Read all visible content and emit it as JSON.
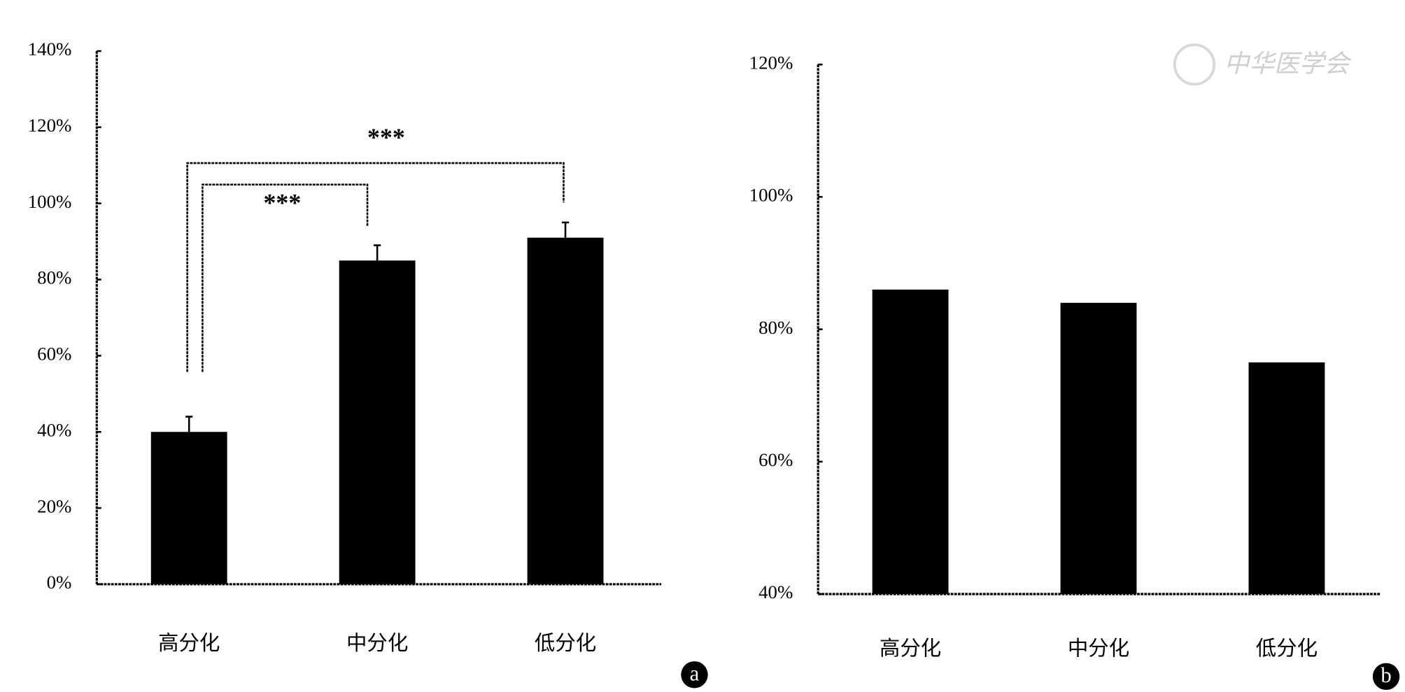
{
  "watermark": "中华医学会",
  "chart_data": [
    {
      "type": "bar",
      "panel": "a",
      "categories": [
        "高分化",
        "中分化",
        "低分化"
      ],
      "values": [
        40,
        85,
        91
      ],
      "errors": [
        4,
        4,
        4
      ],
      "color": "#000000",
      "ylim": [
        0,
        140
      ],
      "yticks": [
        {
          "value": 0,
          "label": "0%"
        },
        {
          "value": 20,
          "label": "20%"
        },
        {
          "value": 40,
          "label": "40%"
        },
        {
          "value": 60,
          "label": "60%"
        },
        {
          "value": 80,
          "label": "80%"
        },
        {
          "value": 100,
          "label": "100%"
        },
        {
          "value": 120,
          "label": "120%"
        },
        {
          "value": 140,
          "label": "140%"
        }
      ],
      "comparisons": [
        {
          "from": 0,
          "to": 2,
          "label": "***"
        },
        {
          "from": 0,
          "to": 1,
          "label": "***"
        }
      ]
    },
    {
      "type": "bar",
      "panel": "b",
      "categories": [
        "高分化",
        "中分化",
        "低分化"
      ],
      "values": [
        86,
        84,
        75
      ],
      "color": "#000000",
      "ylim": [
        40,
        120
      ],
      "yticks": [
        {
          "value": 40,
          "label": "40%"
        },
        {
          "value": 60,
          "label": "60%"
        },
        {
          "value": 80,
          "label": "80%"
        },
        {
          "value": 100,
          "label": "100%"
        },
        {
          "value": 120,
          "label": "120%"
        }
      ]
    }
  ]
}
